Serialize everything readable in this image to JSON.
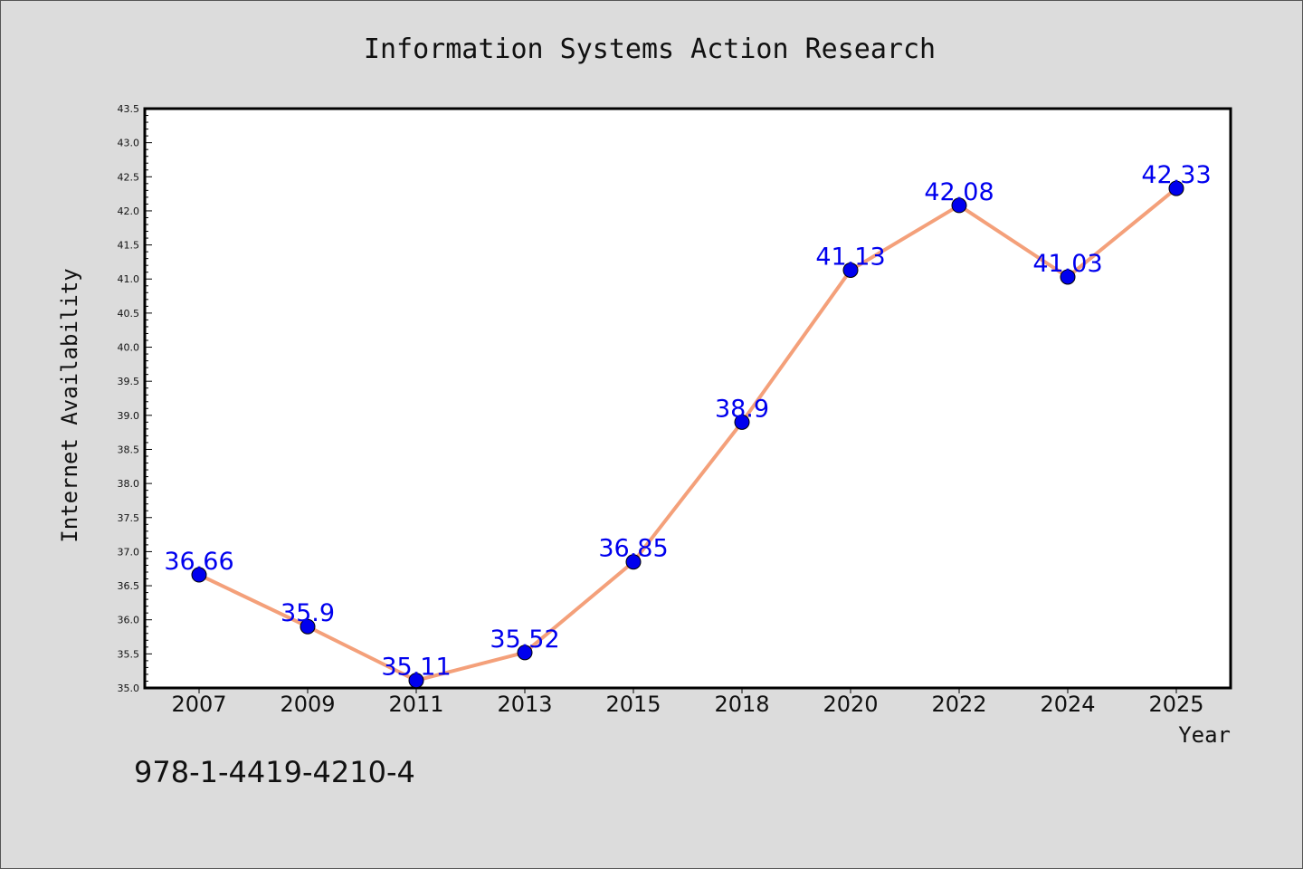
{
  "chart_data": {
    "type": "line",
    "title": "Information Systems Action Research",
    "xlabel": "Year",
    "ylabel": "Internet Availability",
    "categories": [
      "2007",
      "2009",
      "2011",
      "2013",
      "2015",
      "2018",
      "2020",
      "2022",
      "2024",
      "2025"
    ],
    "series": [
      {
        "values": [
          36.66,
          35.9,
          35.11,
          35.52,
          36.85,
          38.9,
          41.13,
          42.08,
          41.03,
          42.33
        ]
      }
    ],
    "data_labels": [
      "36.66",
      "35.9",
      "35.11",
      "35.52",
      "36.85",
      "38.9",
      "41.13",
      "42.08",
      "41.03",
      "42.33"
    ],
    "ylim": [
      35.0,
      43.5
    ],
    "ytick_step": 0.5,
    "grid": false,
    "line_color": "#f4a07a",
    "marker_color": "#0000ee",
    "label_color": "#0000ee",
    "background_color": "#dcdcdc",
    "plot_background": "#ffffff"
  },
  "footer": {
    "isbn": "978-1-4419-4210-4"
  }
}
